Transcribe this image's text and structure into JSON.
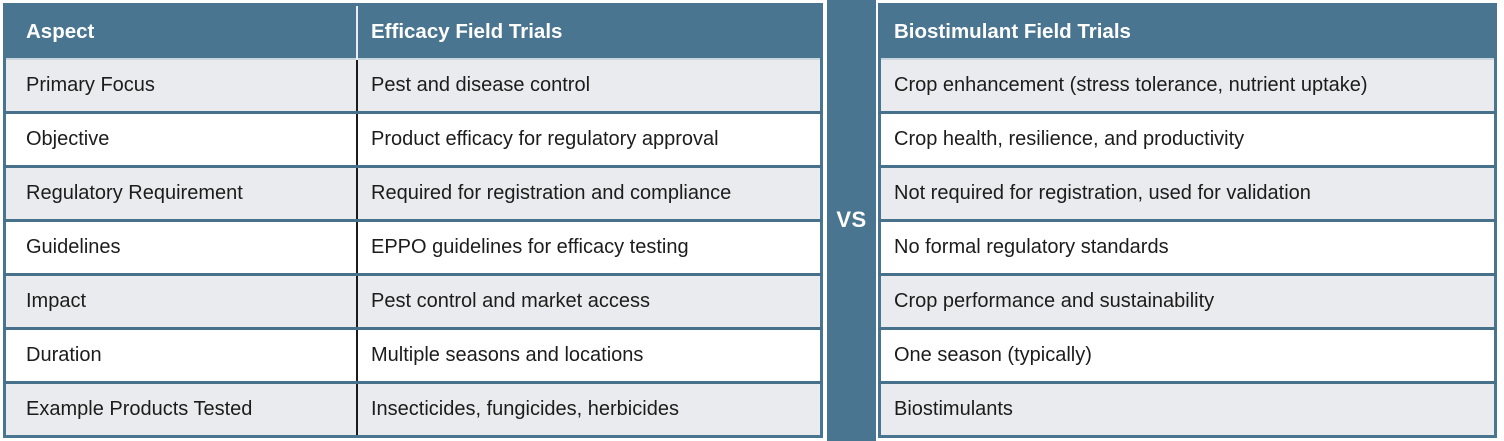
{
  "colors": {
    "teal": "#4a7590",
    "row_alt": "#e9ebee",
    "row": "#ffffff",
    "grid_line": "#47718b",
    "column_divider": "#1b1b1b",
    "header_text": "#ffffff",
    "body_text": "#1c1c1c"
  },
  "chart_data": {
    "type": "table",
    "layout": "two-tables-with-vs-divider",
    "divider_label": "VS",
    "left": {
      "headers": [
        "Aspect",
        "Efficacy Field Trials"
      ],
      "rows": [
        [
          "Primary Focus",
          "Pest and disease control"
        ],
        [
          "Objective",
          "Product efficacy for regulatory approval"
        ],
        [
          "Regulatory Requirement",
          "Required for registration and compliance"
        ],
        [
          "Guidelines",
          "EPPO guidelines for efficacy testing"
        ],
        [
          "Impact",
          "Pest control and market access"
        ],
        [
          "Duration",
          "Multiple seasons and locations"
        ],
        [
          "Example Products Tested",
          "Insecticides, fungicides, herbicides"
        ]
      ]
    },
    "right": {
      "header": "Biostimulant Field Trials",
      "rows": [
        "Crop enhancement (stress tolerance, nutrient uptake)",
        "Crop health, resilience, and productivity",
        "Not required for registration, used for validation",
        "No formal regulatory standards",
        "Crop performance and sustainability",
        "One season (typically)",
        "Biostimulants"
      ]
    }
  }
}
